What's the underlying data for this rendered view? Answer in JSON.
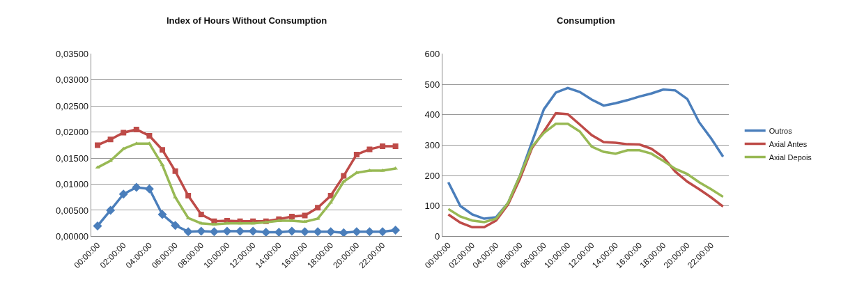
{
  "chart_data": [
    {
      "type": "line",
      "title": "Index of Hours Without Consumption",
      "categories": [
        "00:00:00",
        null,
        "02:00:00",
        null,
        "04:00:00",
        null,
        "06:00:00",
        null,
        "08:00:00",
        null,
        "10:00:00",
        null,
        "12:00:00",
        null,
        "14:00:00",
        null,
        "16:00:00",
        null,
        "18:00:00",
        null,
        "20:00:00",
        null,
        "22:00:00",
        null
      ],
      "series": [
        {
          "color": "#4a7ebb",
          "marker": "diamond",
          "values": [
            0.002,
            0.005,
            0.0081,
            0.0094,
            0.0091,
            0.0042,
            0.0021,
            0.0009,
            0.001,
            0.0009,
            0.001,
            0.001,
            0.001,
            0.0008,
            0.0008,
            0.001,
            0.0009,
            0.0009,
            0.0009,
            0.0007,
            0.0009,
            0.0009,
            0.0009,
            0.0012
          ]
        },
        {
          "color": "#be4b48",
          "marker": "square",
          "values": [
            0.0175,
            0.0186,
            0.0199,
            0.0205,
            0.0193,
            0.0166,
            0.0125,
            0.0078,
            0.0042,
            0.0029,
            0.003,
            0.0029,
            0.0029,
            0.0029,
            0.0033,
            0.0038,
            0.004,
            0.0055,
            0.0078,
            0.0116,
            0.0157,
            0.0167,
            0.0173,
            0.0173
          ]
        },
        {
          "color": "#98b954",
          "marker": "triangle",
          "values": [
            0.0132,
            0.0145,
            0.0168,
            0.0178,
            0.0178,
            0.0137,
            0.0075,
            0.0035,
            0.0025,
            0.0023,
            0.0025,
            0.0025,
            0.0025,
            0.0027,
            0.003,
            0.003,
            0.0028,
            0.0034,
            0.0065,
            0.0105,
            0.0122,
            0.0126,
            0.0126,
            0.013
          ]
        }
      ],
      "ylim": [
        0,
        0.035
      ],
      "yticks": [
        {
          "value": 0,
          "label": "0,00000"
        },
        {
          "value": 0.005,
          "label": "0,00500"
        },
        {
          "value": 0.01,
          "label": "0,01000"
        },
        {
          "value": 0.015,
          "label": "0,01500"
        },
        {
          "value": 0.02,
          "label": "0,02000"
        },
        {
          "value": 0.025,
          "label": "0,02500"
        },
        {
          "value": 0.03,
          "label": "0,03000"
        },
        {
          "value": 0.035,
          "label": "0,03500"
        }
      ],
      "grid": "y",
      "legend": false
    },
    {
      "type": "line",
      "title": "Consumption",
      "categories": [
        "00:00:00",
        null,
        "02:00:00",
        null,
        "04:00:00",
        null,
        "06:00:00",
        null,
        "08:00:00",
        null,
        "10:00:00",
        null,
        "12:00:00",
        null,
        "14:00:00",
        null,
        "16:00:00",
        null,
        "18:00:00",
        null,
        "20:00:00",
        null,
        "22:00:00",
        null
      ],
      "series": [
        {
          "name": "Outros",
          "color": "#4a7ebb",
          "values": [
            178,
            100,
            72,
            58,
            63,
            110,
            200,
            310,
            418,
            473,
            488,
            475,
            450,
            430,
            438,
            448,
            460,
            470,
            483,
            480,
            452,
            375,
            322,
            262
          ]
        },
        {
          "name": "Axial Antes",
          "color": "#be4b48",
          "values": [
            72,
            45,
            30,
            30,
            52,
            105,
            190,
            290,
            345,
            405,
            402,
            368,
            333,
            310,
            308,
            303,
            302,
            288,
            260,
            213,
            180,
            155,
            128,
            98
          ]
        },
        {
          "name": "Axial Depois",
          "color": "#98b954",
          "values": [
            90,
            65,
            52,
            47,
            58,
            110,
            200,
            295,
            340,
            370,
            370,
            345,
            295,
            278,
            272,
            283,
            283,
            272,
            248,
            222,
            205,
            178,
            155,
            130
          ]
        }
      ],
      "ylim": [
        0,
        600
      ],
      "yticks": [
        0,
        100,
        200,
        300,
        400,
        500,
        600
      ],
      "grid": "y",
      "legend": "right",
      "marker": "none"
    }
  ]
}
